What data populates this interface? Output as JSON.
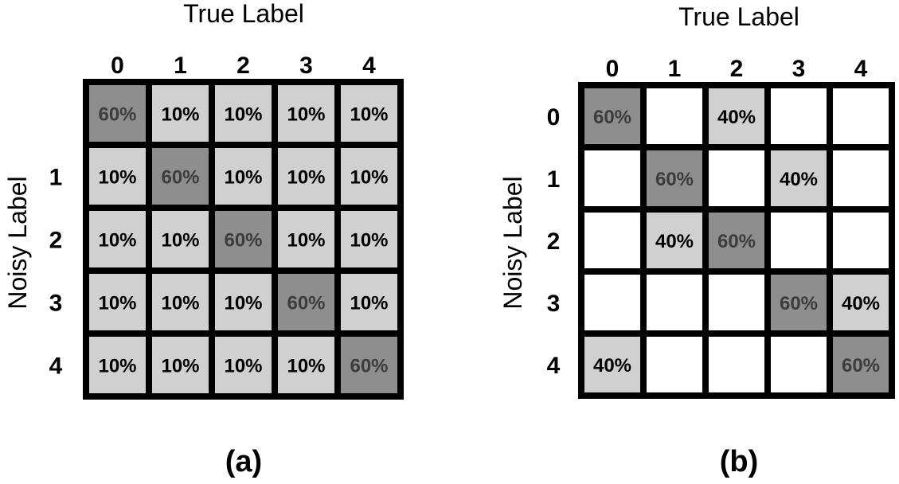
{
  "chart_data": [
    {
      "type": "heatmap",
      "panel_label": "(a)",
      "xlabel": "True Label",
      "ylabel": "Noisy Label",
      "x_categories": [
        "0",
        "1",
        "2",
        "3",
        "4"
      ],
      "y_categories": [
        "",
        "1",
        "2",
        "3",
        "4"
      ],
      "cells": [
        [
          "60%",
          "10%",
          "10%",
          "10%",
          "10%"
        ],
        [
          "10%",
          "60%",
          "10%",
          "10%",
          "10%"
        ],
        [
          "10%",
          "10%",
          "60%",
          "10%",
          "10%"
        ],
        [
          "10%",
          "10%",
          "10%",
          "60%",
          "10%"
        ],
        [
          "10%",
          "10%",
          "10%",
          "10%",
          "60%"
        ]
      ]
    },
    {
      "type": "heatmap",
      "panel_label": "(b)",
      "xlabel": "True Label",
      "ylabel": "Noisy Label",
      "x_categories": [
        "0",
        "1",
        "2",
        "3",
        "4"
      ],
      "y_categories": [
        "0",
        "1",
        "2",
        "3",
        "4"
      ],
      "cells": [
        [
          "60%",
          "",
          "40%",
          "",
          ""
        ],
        [
          "",
          "60%",
          "",
          "40%",
          ""
        ],
        [
          "",
          "40%",
          "60%",
          "",
          ""
        ],
        [
          "",
          "",
          "",
          "60%",
          "40%"
        ],
        [
          "40%",
          "",
          "",
          "",
          "60%"
        ]
      ]
    }
  ],
  "colors": {
    "diagonal_fill": "#8e8e8e",
    "off_diagonal_fill": "#d0d0d0",
    "empty_fill": "#ffffff",
    "grid_line": "#000000",
    "diagonal_text": "#3c3c3c",
    "off_diagonal_text": "#000000"
  }
}
